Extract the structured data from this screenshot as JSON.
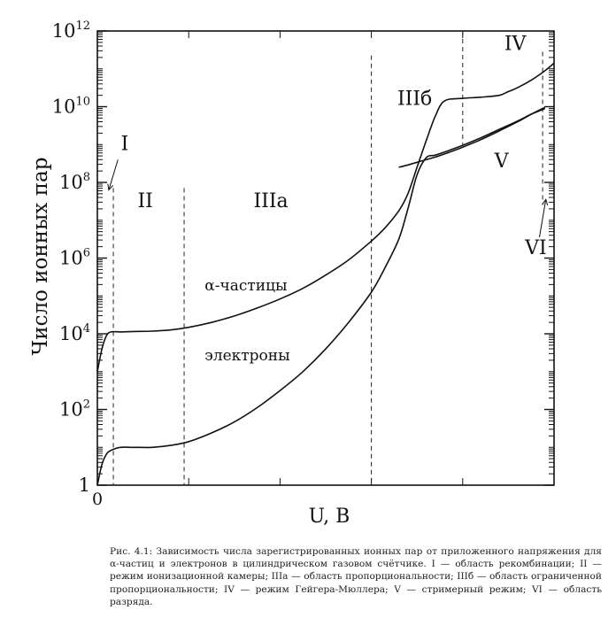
{
  "chart_data": {
    "type": "line",
    "title": "",
    "xlabel": "U, В",
    "ylabel": "Число ионных пар",
    "x_tick_labels": [
      "0"
    ],
    "y_scale": "log",
    "ylim": [
      1,
      1000000000000
    ],
    "y_tick_labels": [
      {
        "base": "1",
        "exp": ""
      },
      {
        "base": "10",
        "exp": "2"
      },
      {
        "base": "10",
        "exp": "4"
      },
      {
        "base": "10",
        "exp": "6"
      },
      {
        "base": "10",
        "exp": "8"
      },
      {
        "base": "10",
        "exp": "10"
      },
      {
        "base": "10",
        "exp": "12"
      }
    ],
    "y_tick_exponents": [
      0,
      2,
      4,
      6,
      8,
      10,
      12
    ],
    "xlim": [
      0,
      100
    ],
    "x_minor_ticks": [
      20,
      40,
      60,
      80
    ],
    "region_boundaries": [
      3.5,
      19,
      60,
      80,
      97.5
    ],
    "region_labels": [
      {
        "text": "I",
        "x": 6,
        "y_exp": 8.85
      },
      {
        "text": "II",
        "x": 10.5,
        "y_exp": 7.35
      },
      {
        "text": "IIIa",
        "x": 38,
        "y_exp": 7.35
      },
      {
        "text": "IIIб",
        "x": 69.5,
        "y_exp": 10.05
      },
      {
        "text": "IV",
        "x": 91.5,
        "y_exp": 11.5
      },
      {
        "text": "V",
        "x": 88.5,
        "y_exp": 8.4
      },
      {
        "text": "VI",
        "x": 96,
        "y_exp": 6.1
      }
    ],
    "series": [
      {
        "name": "α-частицы",
        "x": [
          0,
          1,
          2,
          3,
          5,
          8,
          12,
          16,
          20,
          25,
          30,
          35,
          40,
          45,
          50,
          55,
          60,
          63,
          66,
          68,
          70,
          72,
          74,
          76,
          80,
          84,
          88,
          90,
          92,
          95,
          98,
          100
        ],
        "y_exp": [
          3.0,
          3.6,
          3.95,
          4.05,
          4.05,
          4.06,
          4.07,
          4.1,
          4.17,
          4.3,
          4.47,
          4.68,
          4.92,
          5.2,
          5.55,
          5.95,
          6.45,
          6.8,
          7.25,
          7.7,
          8.4,
          9.1,
          9.75,
          10.15,
          10.22,
          10.25,
          10.3,
          10.4,
          10.5,
          10.7,
          10.95,
          11.15
        ]
      },
      {
        "name": "электроны",
        "x": [
          0,
          1,
          2,
          3,
          5,
          8,
          12,
          16,
          20,
          25,
          30,
          35,
          40,
          45,
          50,
          55,
          60,
          63,
          66,
          68,
          70,
          72,
          74,
          76,
          80,
          84,
          88,
          92,
          95,
          98
        ],
        "y_exp": [
          0.0,
          0.55,
          0.82,
          0.92,
          1.0,
          1.0,
          1.0,
          1.05,
          1.15,
          1.38,
          1.67,
          2.05,
          2.5,
          3.0,
          3.6,
          4.3,
          5.1,
          5.75,
          6.5,
          7.3,
          8.2,
          8.65,
          8.72,
          8.8,
          8.98,
          9.18,
          9.4,
          9.62,
          9.8,
          9.95
        ]
      },
      {
        "name": "",
        "x": [
          66,
          68,
          70,
          72,
          74,
          76,
          80,
          84,
          88,
          92,
          95,
          98
        ],
        "y_exp": [
          8.4,
          8.46,
          8.53,
          8.6,
          8.67,
          8.75,
          8.93,
          9.13,
          9.36,
          9.6,
          9.8,
          9.98
        ]
      }
    ],
    "annotations": [
      {
        "text": "α-частицы",
        "x": 23.5,
        "y_exp": 5.15
      },
      {
        "text": "электроны",
        "x": 23.5,
        "y_exp": 3.3
      }
    ],
    "grid": false
  },
  "caption": "Рис. 4.1: Зависимость числа зарегистрированных ионных пар от приложенного напряжения для α-частиц и электронов в цилиндрическом газовом счётчике. I — область рекомбинации; II — режим ионизационной камеры; IIIa — область пропорциональности; IIIб — область ограниченной пропорциональности; IV — режим Гейгера-Мюллера; V — стримерный режим; VI — область разряда."
}
